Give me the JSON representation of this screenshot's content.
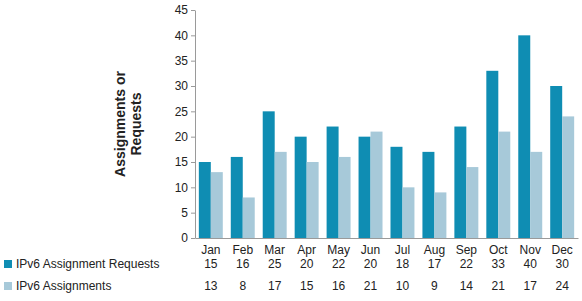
{
  "chart_data": {
    "type": "bar",
    "y_label": "Assignments or Requests",
    "categories": [
      "Jan",
      "Feb",
      "Mar",
      "Apr",
      "May",
      "Jun",
      "Jul",
      "Aug",
      "Sep",
      "Oct",
      "Nov",
      "Dec"
    ],
    "series": [
      {
        "name": "IPv6 Assignment Requests",
        "color": "#0f8db3",
        "values": [
          15,
          16,
          25,
          20,
          22,
          20,
          18,
          17,
          22,
          33,
          40,
          30
        ]
      },
      {
        "name": "IPv6 Assignments",
        "color": "#a7c9d9",
        "values": [
          13,
          8,
          17,
          15,
          16,
          21,
          10,
          9,
          14,
          21,
          17,
          24
        ]
      }
    ],
    "ylim": [
      0,
      45
    ],
    "yticks": [
      0,
      5,
      10,
      15,
      20,
      25,
      30,
      35,
      40,
      45
    ],
    "grid": false
  }
}
